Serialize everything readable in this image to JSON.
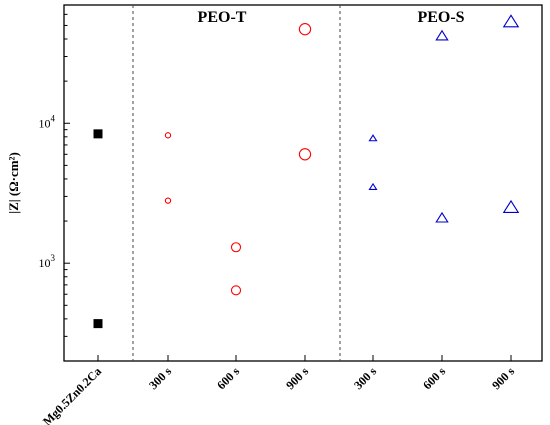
{
  "chart_data": {
    "type": "scatter",
    "ylabel": "|Z| (Ω·cm²)",
    "yscale": "log",
    "ylim": [
      200,
      70000
    ],
    "yticks": [
      {
        "value": 1000,
        "base": "10",
        "exp": "3"
      },
      {
        "value": 10000,
        "base": "10",
        "exp": "4"
      }
    ],
    "categories": [
      "Mg0.5Zn0.2Ca",
      "300 s",
      "600 s",
      "900 s",
      "300 s",
      "600 s",
      "900 s"
    ],
    "group_labels": [
      {
        "label": "PEO-T",
        "category_range": [
          1,
          3
        ]
      },
      {
        "label": "PEO-S",
        "category_range": [
          4,
          6
        ]
      }
    ],
    "separators_after_category": [
      0,
      3
    ],
    "grid": false,
    "series": [
      {
        "marker": "square",
        "color": "#000000",
        "points": [
          {
            "category": 0,
            "y": 8400
          },
          {
            "category": 0,
            "y": 370
          }
        ]
      },
      {
        "marker": "circle",
        "color": "#ff0000",
        "points": [
          {
            "category": 1,
            "y": 8200,
            "size": 1
          },
          {
            "category": 1,
            "y": 2800,
            "size": 1
          },
          {
            "category": 2,
            "y": 1300,
            "size": 2
          },
          {
            "category": 2,
            "y": 640,
            "size": 2
          },
          {
            "category": 3,
            "y": 47000,
            "size": 3
          },
          {
            "category": 3,
            "y": 6000,
            "size": 3
          }
        ]
      },
      {
        "marker": "triangle",
        "color": "#0000cc",
        "points": [
          {
            "category": 4,
            "y": 7800,
            "size": 1
          },
          {
            "category": 4,
            "y": 3500,
            "size": 1
          },
          {
            "category": 5,
            "y": 42000,
            "size": 2
          },
          {
            "category": 5,
            "y": 2100,
            "size": 2
          },
          {
            "category": 6,
            "y": 53000,
            "size": 3
          },
          {
            "category": 6,
            "y": 2500,
            "size": 3
          }
        ]
      }
    ]
  }
}
